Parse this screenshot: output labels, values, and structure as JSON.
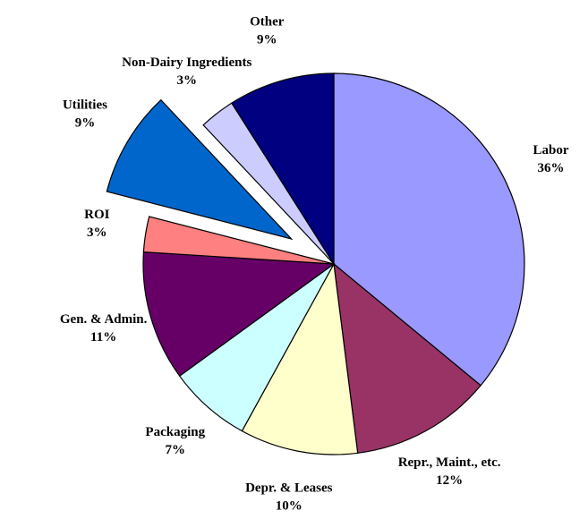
{
  "chart_data": {
    "type": "pie",
    "categories": [
      "Labor",
      "Repr., Maint., etc.",
      "Depr. & Leases",
      "Packaging",
      "Gen. & Admin.",
      "ROI",
      "Utilities",
      "Non-Dairy Ingredients",
      "Other"
    ],
    "values": [
      36,
      12,
      10,
      7,
      11,
      3,
      9,
      3,
      9
    ],
    "value_labels": [
      "36%",
      "12%",
      "10%",
      "7%",
      "11%",
      "3%",
      "9%",
      "3%",
      "9%"
    ],
    "colors": [
      "#9999ff",
      "#993366",
      "#ffffcc",
      "#ccffff",
      "#660066",
      "#ff8080",
      "#0066cc",
      "#ccccff",
      "#000080"
    ],
    "exploded": [
      "Utilities"
    ]
  }
}
